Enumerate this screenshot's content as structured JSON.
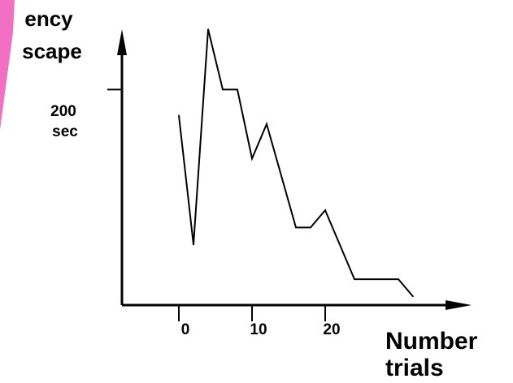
{
  "colors": {
    "background": "#ffffff",
    "accent_decoration": "#f26fc4",
    "axis": "#000000",
    "series_line": "#000000"
  },
  "chart_data": {
    "type": "line",
    "title": "",
    "ylabel_lines": [
      "ency",
      "scape"
    ],
    "xlabel_lines": [
      "Number",
      "trials"
    ],
    "ytick": {
      "value": 200,
      "label_lines": [
        "200",
        "sec"
      ]
    },
    "xticks": [
      {
        "value": 0,
        "label": "0"
      },
      {
        "value": 10,
        "label": "10"
      },
      {
        "value": 20,
        "label": "20"
      }
    ],
    "xlim": [
      -8,
      40
    ],
    "ylim": [
      0,
      256
    ],
    "grid": false,
    "legend": "none",
    "series": [
      {
        "values": [
          {
            "x": 0,
            "y": 176
          },
          {
            "x": 2,
            "y": 56
          },
          {
            "x": 4,
            "y": 256
          },
          {
            "x": 6,
            "y": 200
          },
          {
            "x": 8,
            "y": 200
          },
          {
            "x": 10,
            "y": 136
          },
          {
            "x": 12,
            "y": 168
          },
          {
            "x": 14,
            "y": 120
          },
          {
            "x": 16,
            "y": 72
          },
          {
            "x": 18,
            "y": 72
          },
          {
            "x": 20,
            "y": 88
          },
          {
            "x": 22,
            "y": 56
          },
          {
            "x": 24,
            "y": 24
          },
          {
            "x": 26,
            "y": 24
          },
          {
            "x": 28,
            "y": 24
          },
          {
            "x": 30,
            "y": 24
          },
          {
            "x": 32,
            "y": 8
          }
        ]
      }
    ]
  }
}
